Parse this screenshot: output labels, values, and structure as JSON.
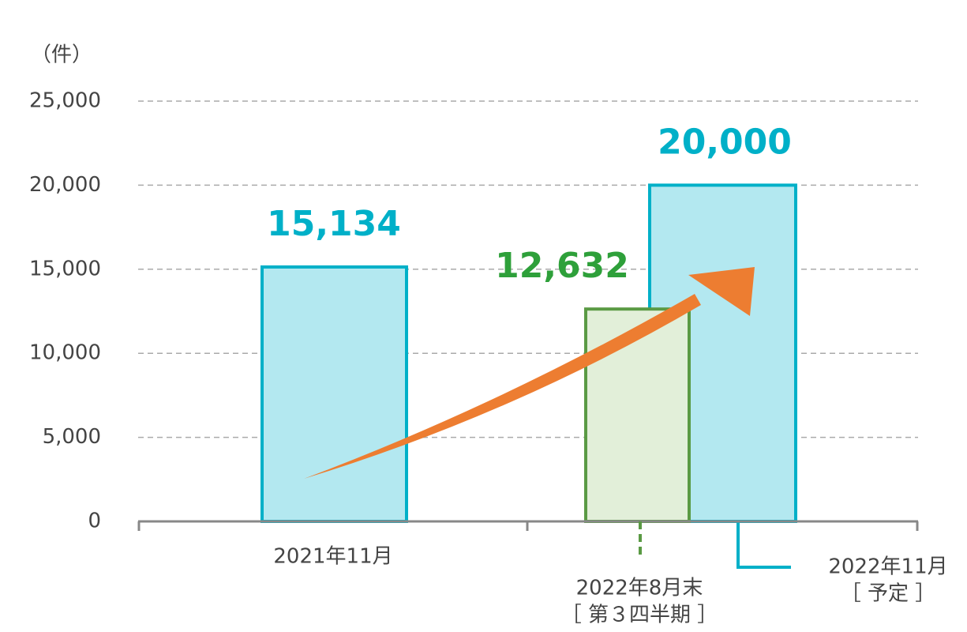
{
  "chart_data": {
    "type": "bar",
    "y_unit": "（件）",
    "categories": [
      "2021年11月",
      "2022年8月末",
      "2022年11月"
    ],
    "category_notes": [
      null,
      "［ 第３四半期 ］",
      "［ 予定 ］"
    ],
    "values": [
      15134,
      12632,
      20000
    ],
    "value_labels": [
      "15,134",
      "12,632",
      "20,000"
    ],
    "colors": [
      "#00b0c8",
      "#5a9a44",
      "#00b0c8"
    ],
    "fill_colors": [
      "#b3e8f0",
      "#e2efd9",
      "#b3e8f0"
    ],
    "label_colors": [
      "#00b0c8",
      "#2ea03a",
      "#00b0c8"
    ],
    "ylim": [
      0,
      25000
    ],
    "yticks": [
      {
        "value": 0,
        "label": "0"
      },
      {
        "value": 5000,
        "label": "5,000"
      },
      {
        "value": 10000,
        "label": "10,000"
      },
      {
        "value": 15000,
        "label": "15,000"
      },
      {
        "value": 20000,
        "label": "20,000"
      },
      {
        "value": 25000,
        "label": "25,000"
      }
    ],
    "grid": true
  }
}
